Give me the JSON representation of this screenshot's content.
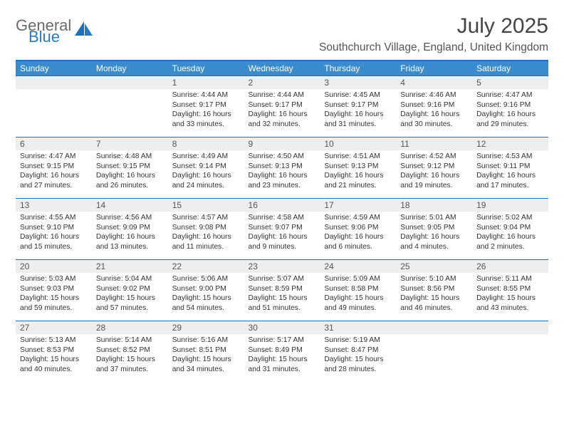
{
  "logo": {
    "line1": "General",
    "line2": "Blue"
  },
  "title": "July 2025",
  "location": "Southchurch Village, England, United Kingdom",
  "colors": {
    "header_bg": "#3a8ccc",
    "header_text": "#ffffff",
    "divider": "#1d6fb8",
    "daynum_bg": "#eceef0",
    "logo_gray": "#6b6b6b",
    "logo_blue": "#2a7ac0",
    "text": "#333333",
    "bg": "#ffffff"
  },
  "typography": {
    "title_fontsize": 30,
    "location_fontsize": 15.5,
    "header_fontsize": 12,
    "daynum_fontsize": 12,
    "entry_fontsize": 10.3
  },
  "days_of_week": [
    "Sunday",
    "Monday",
    "Tuesday",
    "Wednesday",
    "Thursday",
    "Friday",
    "Saturday"
  ],
  "first_weekday_index": 2,
  "days": [
    {
      "n": 1,
      "sunrise": "4:44 AM",
      "sunset": "9:17 PM",
      "daylight": "16 hours and 33 minutes."
    },
    {
      "n": 2,
      "sunrise": "4:44 AM",
      "sunset": "9:17 PM",
      "daylight": "16 hours and 32 minutes."
    },
    {
      "n": 3,
      "sunrise": "4:45 AM",
      "sunset": "9:17 PM",
      "daylight": "16 hours and 31 minutes."
    },
    {
      "n": 4,
      "sunrise": "4:46 AM",
      "sunset": "9:16 PM",
      "daylight": "16 hours and 30 minutes."
    },
    {
      "n": 5,
      "sunrise": "4:47 AM",
      "sunset": "9:16 PM",
      "daylight": "16 hours and 29 minutes."
    },
    {
      "n": 6,
      "sunrise": "4:47 AM",
      "sunset": "9:15 PM",
      "daylight": "16 hours and 27 minutes."
    },
    {
      "n": 7,
      "sunrise": "4:48 AM",
      "sunset": "9:15 PM",
      "daylight": "16 hours and 26 minutes."
    },
    {
      "n": 8,
      "sunrise": "4:49 AM",
      "sunset": "9:14 PM",
      "daylight": "16 hours and 24 minutes."
    },
    {
      "n": 9,
      "sunrise": "4:50 AM",
      "sunset": "9:13 PM",
      "daylight": "16 hours and 23 minutes."
    },
    {
      "n": 10,
      "sunrise": "4:51 AM",
      "sunset": "9:13 PM",
      "daylight": "16 hours and 21 minutes."
    },
    {
      "n": 11,
      "sunrise": "4:52 AM",
      "sunset": "9:12 PM",
      "daylight": "16 hours and 19 minutes."
    },
    {
      "n": 12,
      "sunrise": "4:53 AM",
      "sunset": "9:11 PM",
      "daylight": "16 hours and 17 minutes."
    },
    {
      "n": 13,
      "sunrise": "4:55 AM",
      "sunset": "9:10 PM",
      "daylight": "16 hours and 15 minutes."
    },
    {
      "n": 14,
      "sunrise": "4:56 AM",
      "sunset": "9:09 PM",
      "daylight": "16 hours and 13 minutes."
    },
    {
      "n": 15,
      "sunrise": "4:57 AM",
      "sunset": "9:08 PM",
      "daylight": "16 hours and 11 minutes."
    },
    {
      "n": 16,
      "sunrise": "4:58 AM",
      "sunset": "9:07 PM",
      "daylight": "16 hours and 9 minutes."
    },
    {
      "n": 17,
      "sunrise": "4:59 AM",
      "sunset": "9:06 PM",
      "daylight": "16 hours and 6 minutes."
    },
    {
      "n": 18,
      "sunrise": "5:01 AM",
      "sunset": "9:05 PM",
      "daylight": "16 hours and 4 minutes."
    },
    {
      "n": 19,
      "sunrise": "5:02 AM",
      "sunset": "9:04 PM",
      "daylight": "16 hours and 2 minutes."
    },
    {
      "n": 20,
      "sunrise": "5:03 AM",
      "sunset": "9:03 PM",
      "daylight": "15 hours and 59 minutes."
    },
    {
      "n": 21,
      "sunrise": "5:04 AM",
      "sunset": "9:02 PM",
      "daylight": "15 hours and 57 minutes."
    },
    {
      "n": 22,
      "sunrise": "5:06 AM",
      "sunset": "9:00 PM",
      "daylight": "15 hours and 54 minutes."
    },
    {
      "n": 23,
      "sunrise": "5:07 AM",
      "sunset": "8:59 PM",
      "daylight": "15 hours and 51 minutes."
    },
    {
      "n": 24,
      "sunrise": "5:09 AM",
      "sunset": "8:58 PM",
      "daylight": "15 hours and 49 minutes."
    },
    {
      "n": 25,
      "sunrise": "5:10 AM",
      "sunset": "8:56 PM",
      "daylight": "15 hours and 46 minutes."
    },
    {
      "n": 26,
      "sunrise": "5:11 AM",
      "sunset": "8:55 PM",
      "daylight": "15 hours and 43 minutes."
    },
    {
      "n": 27,
      "sunrise": "5:13 AM",
      "sunset": "8:53 PM",
      "daylight": "15 hours and 40 minutes."
    },
    {
      "n": 28,
      "sunrise": "5:14 AM",
      "sunset": "8:52 PM",
      "daylight": "15 hours and 37 minutes."
    },
    {
      "n": 29,
      "sunrise": "5:16 AM",
      "sunset": "8:51 PM",
      "daylight": "15 hours and 34 minutes."
    },
    {
      "n": 30,
      "sunrise": "5:17 AM",
      "sunset": "8:49 PM",
      "daylight": "15 hours and 31 minutes."
    },
    {
      "n": 31,
      "sunrise": "5:19 AM",
      "sunset": "8:47 PM",
      "daylight": "15 hours and 28 minutes."
    }
  ],
  "labels": {
    "sunrise": "Sunrise:",
    "sunset": "Sunset:",
    "daylight": "Daylight:"
  }
}
